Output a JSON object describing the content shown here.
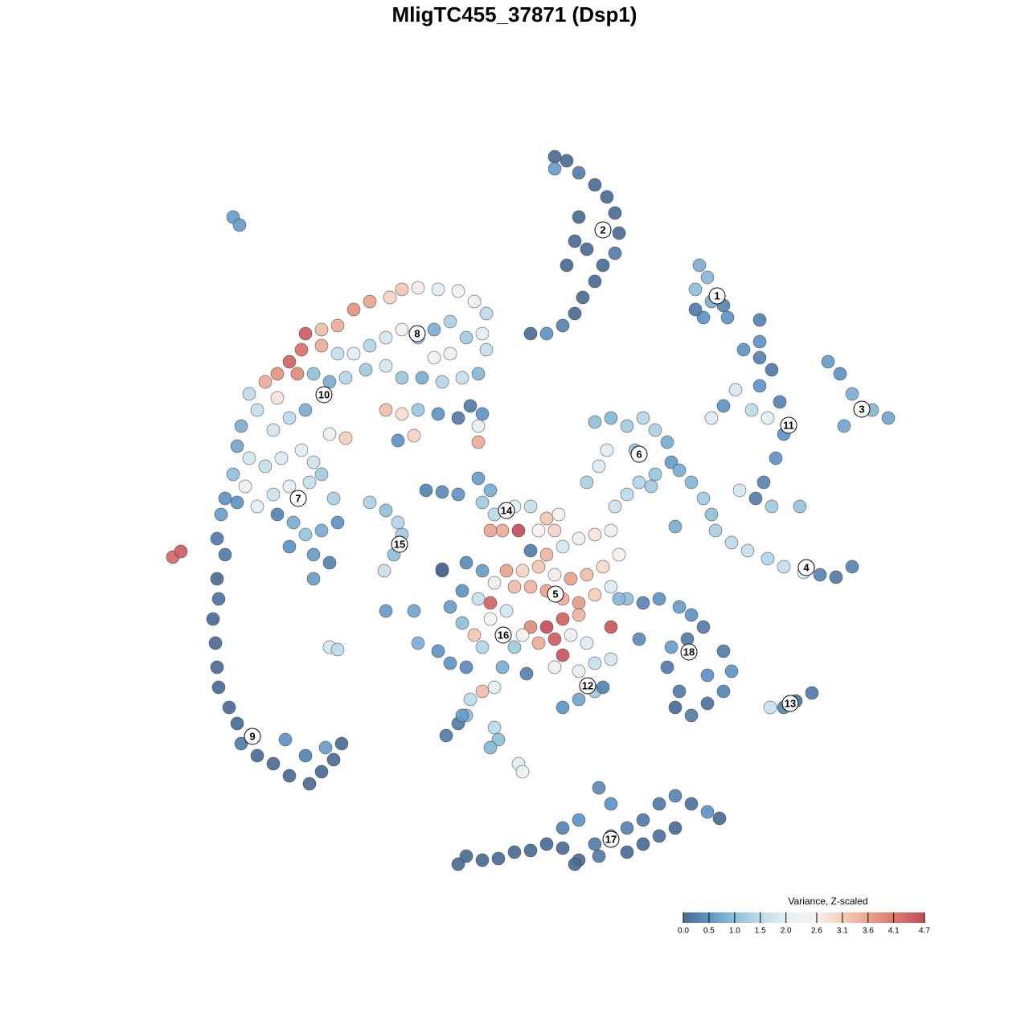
{
  "chart_data": {
    "type": "scatter",
    "title": "MligTC455_37871 (Dsp1)",
    "xlim": [
      0,
      1280
    ],
    "ylim": [
      1280,
      0
    ],
    "x": [
      690,
      705,
      720,
      740,
      755,
      765,
      770,
      765,
      750,
      740,
      725,
      715,
      700,
      680,
      660,
      720,
      715,
      705,
      690,
      730,
      290,
      298,
      870,
      880,
      865,
      885,
      900,
      875,
      865,
      905,
      925,
      945,
      960,
      945,
      915,
      900,
      885,
      935,
      955,
      970,
      975,
      965,
      950,
      920,
      960,
      995,
      940,
      1030,
      1045,
      1060,
      1085,
      1105,
      1050,
      380,
      400,
      420,
      440,
      460,
      485,
      500,
      520,
      545,
      570,
      590,
      605,
      600,
      605,
      580,
      560,
      540,
      520,
      500,
      480,
      460,
      440,
      420,
      400,
      375,
      360,
      345,
      330,
      310,
      320,
      345,
      370,
      390,
      410,
      430,
      455,
      480,
      500,
      525,
      550,
      575,
      595,
      585,
      600,
      595,
      570,
      545,
      520,
      480,
      500,
      430,
      410,
      380,
      360,
      340,
      300,
      295,
      595,
      495,
      515,
      540,
      560,
      310,
      330,
      350,
      375,
      390,
      400,
      385,
      360,
      340,
      320,
      305,
      290,
      280,
      295,
      345,
      365,
      380,
      400,
      420,
      390,
      410,
      390,
      360,
      415,
      275,
      270,
      280,
      270,
      272,
      265,
      268,
      270,
      272,
      285,
      295,
      300,
      320,
      340,
      360,
      385,
      400,
      415,
      425,
      355,
      380,
      405,
      215,
      225,
      460,
      480,
      495,
      500,
      490,
      478,
      410,
      420,
      530,
      550,
      570,
      595,
      610,
      600,
      615,
      640,
      660,
      680,
      695,
      690,
      670,
      645,
      625,
      610,
      660,
      680,
      700,
      720,
      740,
      760,
      770,
      750,
      730,
      710,
      690,
      670,
      650,
      630,
      615,
      640,
      660,
      680,
      700,
      720,
      740,
      760,
      720,
      700,
      680,
      660,
      690,
      670,
      650,
      710,
      730,
      700,
      690,
      720,
      740,
      760,
      760,
      780,
      580,
      600,
      550,
      575,
      595,
      560,
      610,
      630,
      610,
      590,
      575,
      600,
      640,
      625,
      615,
      600,
      585,
      580,
      520,
      545,
      560,
      580,
      555,
      570,
      615,
      620,
      610,
      645,
      650,
      700,
      720,
      740,
      750,
      480,
      515,
      655,
      770,
      575,
      740,
      760,
      780,
      800,
      815,
      830,
      835,
      815,
      795,
      780,
      765,
      745,
      730,
      755,
      790,
      845,
      810,
      860,
      875,
      885,
      890,
      910,
      930,
      955,
      975,
      1000,
      1020,
      1040,
      1060,
      840,
      800,
      820,
      845,
      860,
      875,
      855,
      835,
      830,
      845,
      840,
      860,
      880,
      900,
      910,
      900,
      880,
      795,
      958,
      975,
      990,
      1010,
      580,
      600,
      620,
      640,
      660,
      680,
      700,
      720,
      740,
      760,
      780,
      800,
      820,
      840,
      860,
      880,
      895,
      800,
      820,
      840,
      745,
      760,
      720,
      700,
      745,
      780,
      570,
      715,
      945,
      945,
      550
    ],
    "y": [
      195,
      200,
      215,
      230,
      245,
      265,
      290,
      315,
      330,
      350,
      370,
      390,
      405,
      415,
      415,
      270,
      300,
      330,
      210,
      310,
      270,
      280,
      330,
      345,
      360,
      375,
      380,
      395,
      385,
      395,
      435,
      445,
      460,
      480,
      485,
      505,
      520,
      510,
      520,
      500,
      540,
      570,
      600,
      610,
      630,
      630,
      620,
      450,
      465,
      490,
      510,
      520,
      530,
      415,
      410,
      405,
      385,
      375,
      370,
      360,
      358,
      360,
      362,
      375,
      390,
      415,
      435,
      420,
      440,
      445,
      420,
      410,
      420,
      430,
      440,
      440,
      430,
      435,
      450,
      465,
      475,
      490,
      510,
      495,
      465,
      465,
      475,
      470,
      460,
      455,
      470,
      470,
      475,
      470,
      465,
      505,
      515,
      530,
      520,
      515,
      510,
      510,
      515,
      545,
      540,
      510,
      520,
      535,
      530,
      555,
      550,
      548,
      542,
      410,
      400,
      570,
      580,
      570,
      560,
      575,
      590,
      600,
      605,
      615,
      630,
      605,
      590,
      620,
      625,
      640,
      650,
      665,
      660,
      650,
      690,
      700,
      720,
      680,
      620,
      640,
      670,
      690,
      720,
      745,
      770,
      800,
      830,
      855,
      880,
      900,
      925,
      940,
      950,
      965,
      975,
      960,
      945,
      925,
      920,
      940,
      930,
      693,
      686,
      625,
      635,
      650,
      665,
      690,
      710,
      805,
      808,
      610,
      612,
      615,
      595,
      610,
      625,
      640,
      630,
      630,
      645,
      640,
      660,
      660,
      660,
      660,
      660,
      685,
      690,
      680,
      670,
      665,
      660,
      690,
      705,
      715,
      720,
      715,
      705,
      710,
      710,
      725,
      730,
      730,
      735,
      745,
      750,
      740,
      730,
      765,
      770,
      780,
      780,
      795,
      800,
      790,
      790,
      800,
      815,
      830,
      835,
      825,
      820,
      780,
      745,
      700,
      710,
      710,
      735,
      745,
      755,
      750,
      760,
      770,
      790,
      775,
      805,
      805,
      830,
      855,
      860,
      870,
      890,
      800,
      810,
      825,
      830,
      915,
      900,
      905,
      920,
      930,
      950,
      960,
      880,
      870,
      860,
      855,
      760,
      760,
      838,
      745,
      890,
      525,
      520,
      530,
      520,
      535,
      550,
      575,
      590,
      600,
      615,
      630,
      580,
      600,
      560,
      560,
      585,
      605,
      600,
      620,
      640,
      660,
      675,
      685,
      695,
      705,
      712,
      715,
      718,
      705,
      655,
      750,
      745,
      755,
      765,
      780,
      795,
      805,
      830,
      860,
      880,
      890,
      875,
      860,
      835,
      810,
      840,
      795,
      880,
      880,
      872,
      862,
      1065,
      1070,
      1068,
      1060,
      1058,
      1050,
      1055,
      1070,
      1050,
      1040,
      1030,
      1020,
      1000,
      990,
      1000,
      1010,
      1018,
      1050,
      1040,
      1030,
      980,
      1000,
      1020,
      1030,
      1065,
      1060,
      1075,
      1075,
      398,
      425,
      708
    ],
    "values": [
      0,
      0,
      0.2,
      0,
      0,
      0,
      0,
      0.2,
      0,
      0,
      0,
      0,
      0.3,
      0.5,
      0,
      0,
      0,
      0,
      0.6,
      0,
      0.6,
      0.6,
      0.8,
      0.9,
      1.0,
      0.8,
      0.3,
      0.5,
      0.2,
      0.5,
      0.5,
      0.3,
      0.2,
      0.5,
      1.8,
      0.5,
      1.9,
      1.5,
      2.0,
      0.3,
      0.5,
      0.5,
      0.3,
      1.8,
      1.2,
      1.1,
      0.2,
      0.6,
      0.5,
      0.8,
      0.9,
      0.7,
      0.7,
      4.5,
      3.3,
      3.5,
      3.8,
      3.6,
      3.0,
      3.2,
      2.7,
      2.0,
      2.4,
      2.3,
      1.5,
      2.0,
      1.6,
      1.2,
      2.2,
      2.5,
      1.1,
      2.3,
      1.8,
      1.4,
      2.0,
      1.6,
      3.5,
      4.2,
      4.4,
      3.8,
      3.5,
      1.5,
      1.6,
      2.8,
      3.9,
      1.0,
      0.8,
      1.4,
      1.2,
      1.8,
      1.1,
      0.8,
      1.4,
      1.6,
      0.9,
      0.2,
      0.5,
      2.0,
      0.2,
      0.5,
      1.1,
      3.3,
      2.9,
      3.1,
      2.2,
      0.8,
      1.5,
      1.8,
      0.8,
      0.7,
      3.5,
      0.5,
      3.0,
      0.8,
      1.3,
      1.8,
      1.6,
      1.9,
      2.0,
      1.7,
      1.2,
      1.6,
      2.1,
      1.7,
      2.0,
      2.4,
      1.0,
      0.5,
      0.5,
      0.3,
      0.8,
      1.1,
      0.8,
      0.5,
      0.6,
      0.3,
      0.6,
      0.5,
      1.3,
      0.6,
      0.2,
      0.2,
      0,
      0.1,
      0,
      0,
      0,
      0,
      0,
      0,
      0.2,
      0,
      0,
      0,
      0,
      0,
      0,
      0,
      0.5,
      0.3,
      0.6,
      4.3,
      4.5,
      1.3,
      1.0,
      1.4,
      1.2,
      1.0,
      1.6,
      1.8,
      1.5,
      0.3,
      0.4,
      0.5,
      0.6,
      0.8,
      1.2,
      1.5,
      2.0,
      1.6,
      3.2,
      2.5,
      3.0,
      2.6,
      4.7,
      3.5,
      3.6,
      0.2,
      3.4,
      1.8,
      2.4,
      2.8,
      2.2,
      2.6,
      2.9,
      3.3,
      3.6,
      2.7,
      3.2,
      3.0,
      3.6,
      2.3,
      3.3,
      3.4,
      3.6,
      3.5,
      3.7,
      3.1,
      1.9,
      3.4,
      4.4,
      4.7,
      3.9,
      4.5,
      3.5,
      2.5,
      2.2,
      1.9,
      4.6,
      2.3,
      2.1,
      1.6,
      1.8,
      4.6,
      1.0,
      0.4,
      0.6,
      0.1,
      0.5,
      1.6,
      0.6,
      4.4,
      1.8,
      2.6,
      3.2,
      1.0,
      1.4,
      1.2,
      0.8,
      2.0,
      3.3,
      1.5,
      1.0,
      0.8,
      0.5,
      0.5,
      0.4,
      0.2,
      0.2,
      1.5,
      1.0,
      0.9,
      2.0,
      2.2,
      0.5,
      0.7,
      1.2,
      0.3,
      0.6,
      0.7,
      0.3,
      0.9,
      0.6,
      1.0,
      0.9,
      1.2,
      1.4,
      1.3,
      0.8,
      0.6,
      1.1,
      1.4,
      1.5,
      1.7,
      1.9,
      1.3,
      2.0,
      1.0,
      0.8,
      1.2,
      0.9,
      1.2,
      1.0,
      1.3,
      1.5,
      1.6,
      1.4,
      1.6,
      1.9,
      0.3,
      0.2,
      0.3,
      0.8,
      0.3,
      0.5,
      0.6,
      0.5,
      0.2,
      0.2,
      0.6,
      0.2,
      0.2,
      0,
      0.2,
      0.1,
      0.3,
      0.5,
      0.2,
      0.5,
      0.4,
      1.7,
      0.3,
      0.1,
      0.2,
      0,
      0,
      0,
      0,
      0,
      0,
      0,
      0,
      0.2,
      0.5,
      0.3,
      0.2,
      0.2,
      0.3,
      0.1,
      0.5,
      0,
      0,
      0.1,
      0,
      0.4,
      0.5,
      0.5,
      0.3,
      0.2,
      0,
      0,
      0,
      0.3,
      0.5,
      0
    ],
    "clim": [
      0,
      4.7
    ],
    "colorbar": {
      "title": "Variance, Z-scaled",
      "ticks": [
        {
          "value": 0,
          "label": "0.0"
        },
        0.5,
        {
          "value": 1,
          "label": "1.0"
        },
        1.5,
        {
          "value": 2,
          "label": "2.0"
        },
        2.6,
        3.1,
        3.6,
        4.1,
        4.7
      ],
      "colors": [
        "#4a6b94",
        "#5d93c4",
        "#8fbfd9",
        "#bcdbea",
        "#e3eff5",
        "#f8f1ee",
        "#f5cdbb",
        "#eaa48d",
        "#da7a6d",
        "#c64d5b"
      ]
    },
    "cluster_labels": [
      {
        "label": "1",
        "x": 892,
        "y": 368
      },
      {
        "label": "2",
        "x": 750,
        "y": 286
      },
      {
        "label": "3",
        "x": 1072,
        "y": 509
      },
      {
        "label": "4",
        "x": 1003,
        "y": 706
      },
      {
        "label": "5",
        "x": 691,
        "y": 739
      },
      {
        "label": "6",
        "x": 795,
        "y": 565
      },
      {
        "label": "7",
        "x": 371,
        "y": 620
      },
      {
        "label": "8",
        "x": 519,
        "y": 415
      },
      {
        "label": "9",
        "x": 314,
        "y": 916
      },
      {
        "label": "10",
        "x": 403,
        "y": 491
      },
      {
        "label": "11",
        "x": 981,
        "y": 529
      },
      {
        "label": "12",
        "x": 731,
        "y": 853
      },
      {
        "label": "13",
        "x": 983,
        "y": 875
      },
      {
        "label": "14",
        "x": 630,
        "y": 635
      },
      {
        "label": "15",
        "x": 497,
        "y": 677
      },
      {
        "label": "16",
        "x": 626,
        "y": 790
      },
      {
        "label": "17",
        "x": 760,
        "y": 1044
      },
      {
        "label": "18",
        "x": 857,
        "y": 811
      }
    ]
  }
}
